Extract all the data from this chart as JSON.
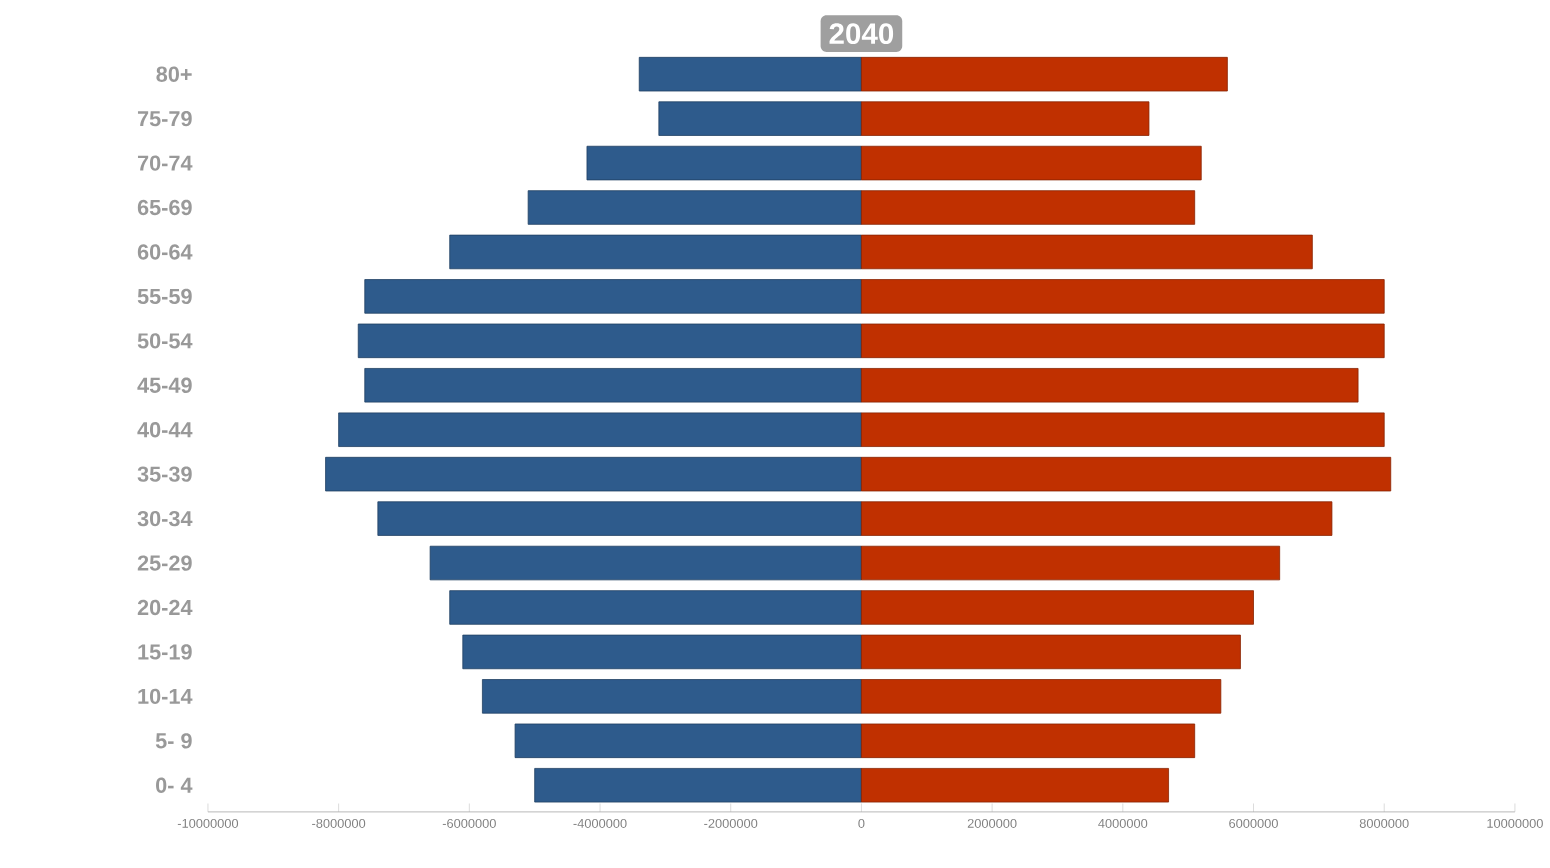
{
  "chart_data": {
    "type": "bar",
    "orientation": "horizontal",
    "title": "2040",
    "categories": [
      "80+",
      "75-79",
      "70-74",
      "65-69",
      "60-64",
      "55-59",
      "50-54",
      "45-49",
      "40-44",
      "35-39",
      "30-34",
      "25-29",
      "20-24",
      "15-19",
      "10-14",
      "5- 9",
      "0- 4"
    ],
    "series": [
      {
        "color": "#2e5b8c",
        "values": [
          -3400000,
          -3100000,
          -4200000,
          -5100000,
          -6300000,
          -7600000,
          -7700000,
          -7600000,
          -8000000,
          -8200000,
          -7400000,
          -6600000,
          -6300000,
          -6100000,
          -5800000,
          -5300000,
          -5000000
        ]
      },
      {
        "color": "#c03000",
        "values": [
          5600000,
          4400000,
          5200000,
          5100000,
          6900000,
          8000000,
          8000000,
          7600000,
          8000000,
          8100000,
          7200000,
          6400000,
          6000000,
          5800000,
          5500000,
          5100000,
          4700000
        ]
      }
    ],
    "xlim": [
      -10000000,
      10000000
    ],
    "xticks": [
      -10000000,
      -8000000,
      -6000000,
      -4000000,
      -2000000,
      0,
      2000000,
      4000000,
      6000000,
      8000000,
      10000000
    ],
    "stacked": true,
    "grid": false
  }
}
